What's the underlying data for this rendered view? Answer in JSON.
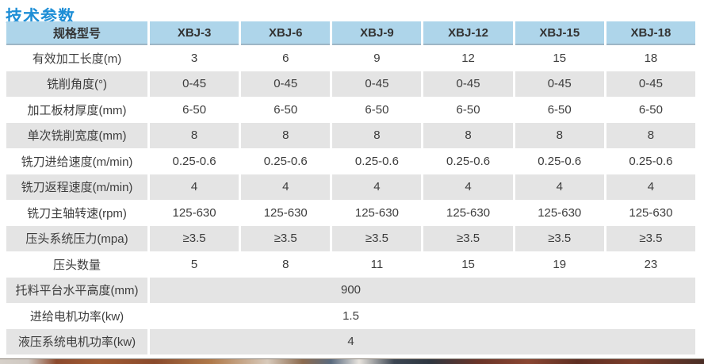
{
  "page": {
    "title": "技术参数"
  },
  "colors": {
    "title_blue": "#1e8ed6",
    "header_bg": "#aed5ea",
    "alt_row_gray": "#e4e4e4",
    "text": "#3d3d3d"
  },
  "table": {
    "header": {
      "label": "规格型号",
      "models": [
        "XBJ-3",
        "XBJ-6",
        "XBJ-9",
        "XBJ-12",
        "XBJ-15",
        "XBJ-18"
      ]
    },
    "rows": [
      {
        "label": "有效加工长度(m)",
        "values": [
          "3",
          "6",
          "9",
          "12",
          "15",
          "18"
        ]
      },
      {
        "label": "铣削角度(°)",
        "values": [
          "0-45",
          "0-45",
          "0-45",
          "0-45",
          "0-45",
          "0-45"
        ]
      },
      {
        "label": "加工板材厚度(mm)",
        "values": [
          "6-50",
          "6-50",
          "6-50",
          "6-50",
          "6-50",
          "6-50"
        ]
      },
      {
        "label": "单次铣削宽度(mm)",
        "values": [
          "8",
          "8",
          "8",
          "8",
          "8",
          "8"
        ]
      },
      {
        "label": "铣刀进给速度(m/min)",
        "values": [
          "0.25-0.6",
          "0.25-0.6",
          "0.25-0.6",
          "0.25-0.6",
          "0.25-0.6",
          "0.25-0.6"
        ]
      },
      {
        "label": "铣刀返程速度(m/min)",
        "values": [
          "4",
          "4",
          "4",
          "4",
          "4",
          "4"
        ]
      },
      {
        "label": "铣刀主轴转速(rpm)",
        "values": [
          "125-630",
          "125-630",
          "125-630",
          "125-630",
          "125-630",
          "125-630"
        ]
      },
      {
        "label": "压头系统压力(mpa)",
        "values": [
          "≥3.5",
          "≥3.5",
          "≥3.5",
          "≥3.5",
          "≥3.5",
          "≥3.5"
        ]
      },
      {
        "label": "压头数量",
        "values": [
          "5",
          "8",
          "11",
          "15",
          "19",
          "23"
        ]
      }
    ],
    "merged_rows": [
      {
        "label": "托料平台水平高度(mm)",
        "value": "900"
      },
      {
        "label": "进给电机功率(kw)",
        "value": "1.5"
      },
      {
        "label": "液压系统电机功率(kw)",
        "value": "4"
      }
    ]
  }
}
